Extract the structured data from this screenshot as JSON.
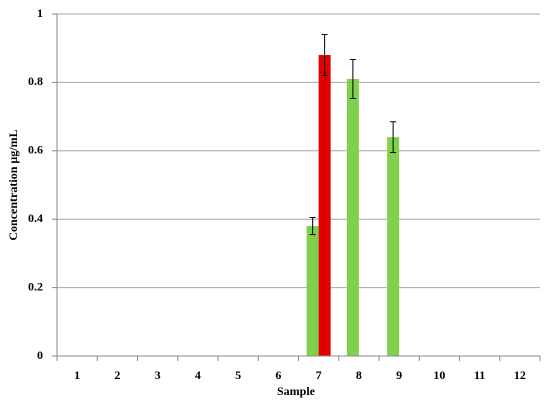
{
  "chart_data": {
    "type": "bar",
    "x_label": "Sample",
    "y_label": "Concentration µg/mL",
    "categories": [
      "1",
      "2",
      "3",
      "4",
      "5",
      "6",
      "7",
      "8",
      "9",
      "10",
      "11",
      "12"
    ],
    "series": [
      {
        "color": "#7fd04c",
        "values": [
          null,
          null,
          null,
          null,
          null,
          null,
          0.38,
          0.81,
          0.64,
          null,
          null,
          null
        ],
        "errors": [
          null,
          null,
          null,
          null,
          null,
          null,
          0.025,
          0.057,
          0.045,
          null,
          null,
          null
        ]
      },
      {
        "color": "#e00000",
        "values": [
          null,
          null,
          null,
          null,
          null,
          null,
          0.88,
          null,
          null,
          null,
          null,
          null
        ],
        "errors": [
          null,
          null,
          null,
          null,
          null,
          null,
          0.06,
          null,
          null,
          null,
          null,
          null
        ]
      }
    ],
    "ylim": [
      0,
      1
    ],
    "yticks": [
      0,
      0.2,
      0.4,
      0.6,
      0.8,
      1
    ],
    "grid": true
  }
}
